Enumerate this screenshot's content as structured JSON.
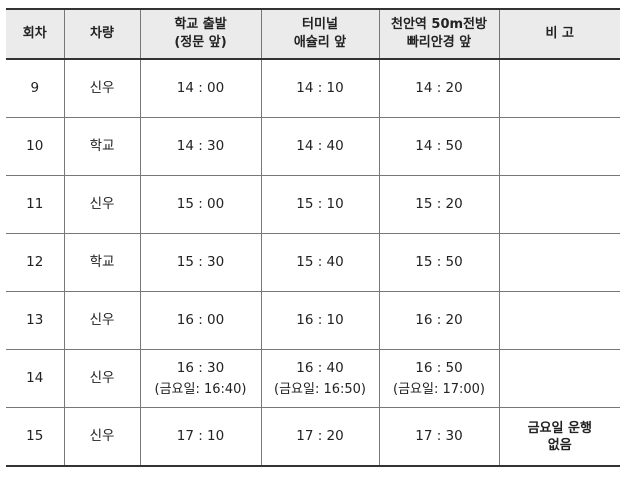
{
  "headers": {
    "round": "회차",
    "vehicle": "차량",
    "stop1_line1": "학교 출발",
    "stop1_line2": "(정문 앞)",
    "stop2_line1": "터미널",
    "stop2_line2": "애슐리 앞",
    "stop3_line1": "천안역 50m전방",
    "stop3_line2": "빠리안경 앞",
    "note": "비 고"
  },
  "rows": [
    {
      "round": "9",
      "vehicle": "신우",
      "t1": "14 : 00",
      "t2": "14 : 10",
      "t3": "14 : 20",
      "note": ""
    },
    {
      "round": "10",
      "vehicle": "학교",
      "t1": "14 : 30",
      "t2": "14 : 40",
      "t3": "14 : 50",
      "note": ""
    },
    {
      "round": "11",
      "vehicle": "신우",
      "t1": "15 : 00",
      "t2": "15 : 10",
      "t3": "15 : 20",
      "note": ""
    },
    {
      "round": "12",
      "vehicle": "학교",
      "t1": "15 : 30",
      "t2": "15 : 40",
      "t3": "15 : 50",
      "note": ""
    },
    {
      "round": "13",
      "vehicle": "신우",
      "t1": "16 : 00",
      "t2": "16 : 10",
      "t3": "16 : 20",
      "note": ""
    },
    {
      "round": "14",
      "vehicle": "신우",
      "t1": "16 : 30",
      "t1_sub": "(금요일: 16:40)",
      "t2": "16 : 40",
      "t2_sub": "(금요일: 16:50)",
      "t3": "16 : 50",
      "t3_sub": "(금요일: 17:00)",
      "note": ""
    },
    {
      "round": "15",
      "vehicle": "신우",
      "t1": "17 : 10",
      "t2": "17 : 20",
      "t3": "17 : 30",
      "note_line1": "금요일 운행",
      "note_line2": "없음"
    }
  ]
}
